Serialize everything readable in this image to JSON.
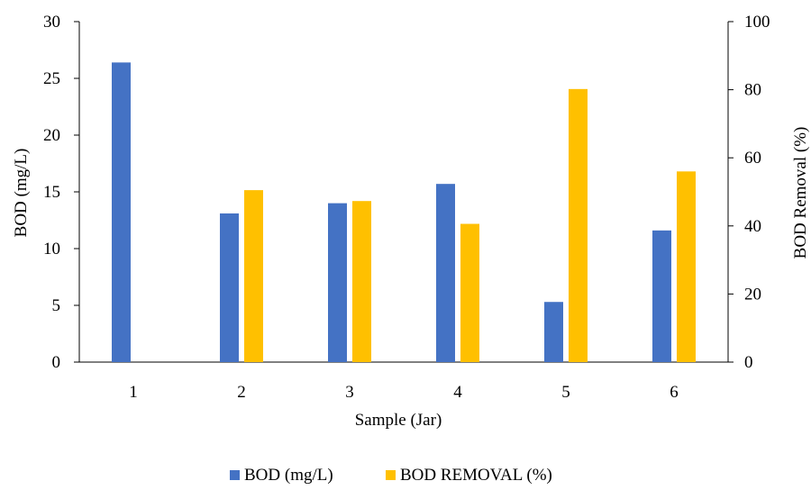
{
  "chart_data": {
    "type": "bar",
    "categories": [
      "1",
      "2",
      "3",
      "4",
      "5",
      "6"
    ],
    "xlabel": "Sample (Jar)",
    "series": [
      {
        "name": "BOD (mg/L)",
        "axis": "left",
        "color": "#4472C4",
        "values": [
          26.4,
          13.1,
          14.0,
          15.7,
          5.3,
          11.6
        ]
      },
      {
        "name": "BOD REMOVAL (%)",
        "axis": "right",
        "color": "#FFC000",
        "values": [
          0,
          50.5,
          47.3,
          40.6,
          80.2,
          56.0
        ]
      }
    ],
    "y_left": {
      "label": "BOD (mg/L)",
      "ylim": [
        0,
        30
      ],
      "ticks": [
        "0",
        "5",
        "10",
        "15",
        "20",
        "25",
        "30"
      ]
    },
    "y_right": {
      "label": "BOD Removal (%)",
      "ylim": [
        0,
        100
      ],
      "ticks": [
        "0",
        "20",
        "40",
        "60",
        "80",
        "100"
      ]
    },
    "grid": false,
    "legend_position": "bottom"
  }
}
